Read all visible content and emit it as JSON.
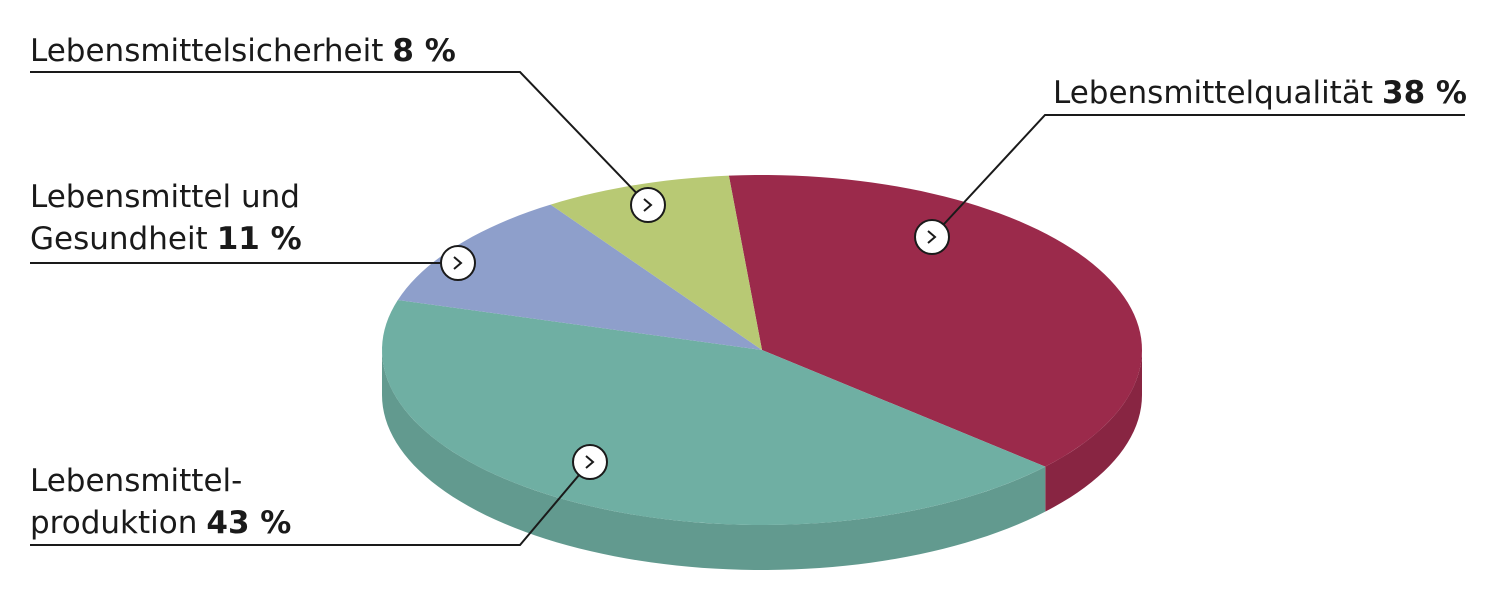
{
  "chart_data": {
    "type": "pie",
    "categories": [
      "Lebensmittelqualität",
      "Lebensmittel-\nproduktion",
      "Lebensmittel und\nGesundheit",
      "Lebensmittelsicherheit"
    ],
    "values": [
      38,
      43,
      11,
      8
    ],
    "value_labels": [
      "38 %",
      "43 %",
      "11 %",
      "8 %"
    ],
    "colors": [
      "#9b2a4b",
      "#6fafa3",
      "#8e9fcb",
      "#b8c974"
    ]
  }
}
